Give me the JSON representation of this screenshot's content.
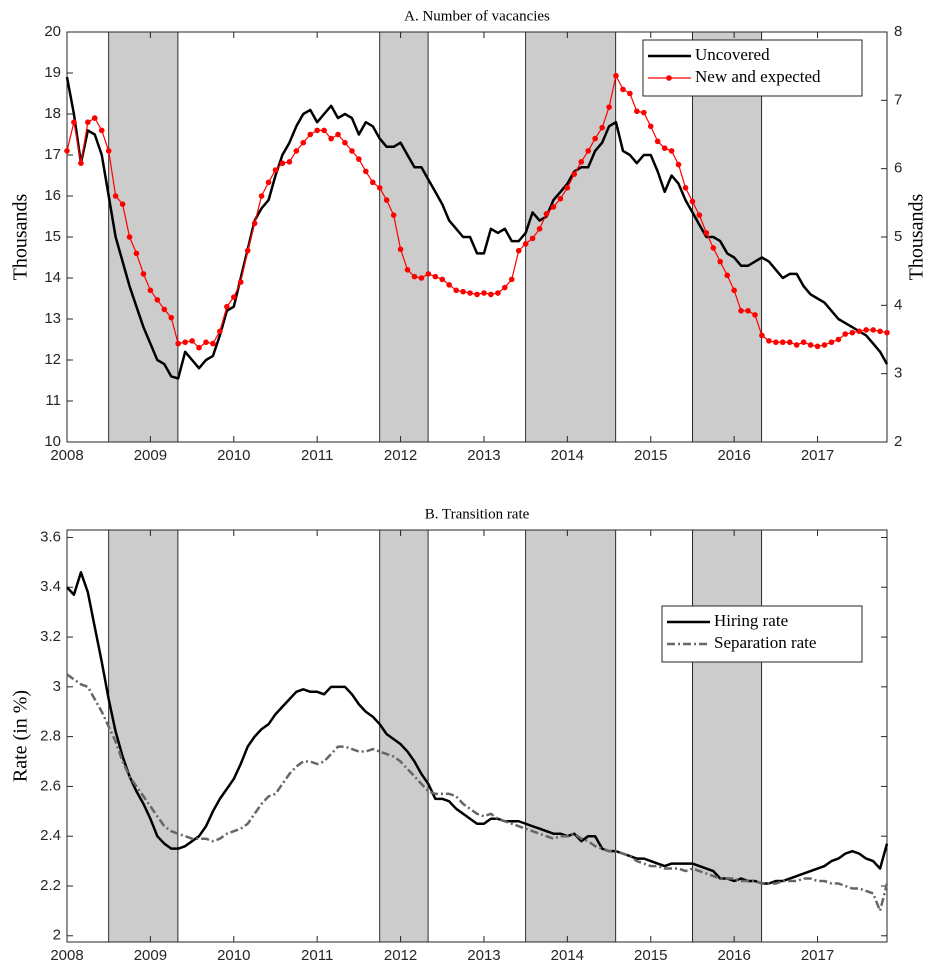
{
  "chart_data": [
    {
      "type": "line",
      "title": "A. Number of vacancies",
      "ylabel": "Thousands",
      "y2label": "Thousands",
      "x": [
        2008,
        2008.083,
        2008.167,
        2008.25,
        2008.333,
        2008.417,
        2008.5,
        2008.583,
        2008.667,
        2008.75,
        2008.833,
        2008.917,
        2009,
        2009.083,
        2009.167,
        2009.25,
        2009.333,
        2009.417,
        2009.5,
        2009.583,
        2009.667,
        2009.75,
        2009.833,
        2009.917,
        2010,
        2010.083,
        2010.167,
        2010.25,
        2010.333,
        2010.417,
        2010.5,
        2010.583,
        2010.667,
        2010.75,
        2010.833,
        2010.917,
        2011,
        2011.083,
        2011.167,
        2011.25,
        2011.333,
        2011.417,
        2011.5,
        2011.583,
        2011.667,
        2011.75,
        2011.833,
        2011.917,
        2012,
        2012.083,
        2012.167,
        2012.25,
        2012.333,
        2012.417,
        2012.5,
        2012.583,
        2012.667,
        2012.75,
        2012.833,
        2012.917,
        2013,
        2013.083,
        2013.167,
        2013.25,
        2013.333,
        2013.417,
        2013.5,
        2013.583,
        2013.667,
        2013.75,
        2013.833,
        2013.917,
        2014,
        2014.083,
        2014.167,
        2014.25,
        2014.333,
        2014.417,
        2014.5,
        2014.583,
        2014.667,
        2014.75,
        2014.833,
        2014.917,
        2015,
        2015.083,
        2015.167,
        2015.25,
        2015.333,
        2015.417,
        2015.5,
        2015.583,
        2015.667,
        2015.75,
        2015.833,
        2015.917,
        2016,
        2016.083,
        2016.167,
        2016.25,
        2016.333,
        2016.417,
        2016.5,
        2016.583,
        2016.667,
        2016.75,
        2016.833,
        2016.917,
        2017,
        2017.083,
        2017.167,
        2017.25,
        2017.333,
        2017.417,
        2017.5,
        2017.583,
        2017.667,
        2017.75,
        2017.833
      ],
      "xlim": [
        2008,
        2017.833
      ],
      "xticks": [
        2008,
        2009,
        2010,
        2011,
        2012,
        2013,
        2014,
        2015,
        2016,
        2017
      ],
      "ylim": [
        10,
        20
      ],
      "yticks": [
        10,
        11,
        12,
        13,
        14,
        15,
        16,
        17,
        18,
        19,
        20
      ],
      "y2lim": [
        2,
        8
      ],
      "y2ticks": [
        2,
        3,
        4,
        5,
        6,
        7,
        8
      ],
      "shaded": [
        [
          2008.5,
          2009.33
        ],
        [
          2011.75,
          2012.33
        ],
        [
          2013.5,
          2014.58
        ],
        [
          2015.5,
          2016.33
        ]
      ],
      "legend": "upper right",
      "series": [
        {
          "name": "Uncovered",
          "color": "#000000",
          "values": [
            18.9,
            18.0,
            16.8,
            17.6,
            17.5,
            17.0,
            16.0,
            15.0,
            14.4,
            13.8,
            13.3,
            12.8,
            12.4,
            12.0,
            11.9,
            11.6,
            11.55,
            12.2,
            12.0,
            11.8,
            12.0,
            12.1,
            12.6,
            13.2,
            13.3,
            14.0,
            14.7,
            15.4,
            15.7,
            15.9,
            16.5,
            17.0,
            17.3,
            17.7,
            18.0,
            18.1,
            17.8,
            18.0,
            18.2,
            17.9,
            18.0,
            17.9,
            17.5,
            17.8,
            17.7,
            17.4,
            17.2,
            17.2,
            17.3,
            17.0,
            16.7,
            16.7,
            16.4,
            16.1,
            15.8,
            15.4,
            15.2,
            15.0,
            15.0,
            14.6,
            14.6,
            15.2,
            15.1,
            15.2,
            14.9,
            14.9,
            15.1,
            15.6,
            15.4,
            15.5,
            15.9,
            16.1,
            16.3,
            16.6,
            16.7,
            16.7,
            17.1,
            17.3,
            17.7,
            17.8,
            17.1,
            17.0,
            16.8,
            17.0,
            17.0,
            16.6,
            16.1,
            16.5,
            16.3,
            15.9,
            15.6,
            15.3,
            15.0,
            15.0,
            14.9,
            14.6,
            14.5,
            14.3,
            14.3,
            14.4,
            14.5,
            14.4,
            14.2,
            14.0,
            14.1,
            14.1,
            13.8,
            13.6,
            13.5,
            13.4,
            13.2,
            13.0,
            12.9,
            12.8,
            12.7,
            12.6,
            12.4,
            12.2,
            11.9
          ]
        },
        {
          "name": "New and expected",
          "color": "#ff0000",
          "axis": "y2",
          "marker": "o",
          "values": [
            6.26,
            6.68,
            6.08,
            6.68,
            6.74,
            6.56,
            6.26,
            5.6,
            5.48,
            5.0,
            4.76,
            4.46,
            4.22,
            4.08,
            3.94,
            3.82,
            3.44,
            3.46,
            3.48,
            3.38,
            3.46,
            3.44,
            3.62,
            3.98,
            4.12,
            4.34,
            4.8,
            5.2,
            5.6,
            5.8,
            5.98,
            6.08,
            6.1,
            6.26,
            6.38,
            6.5,
            6.56,
            6.56,
            6.44,
            6.5,
            6.38,
            6.26,
            6.14,
            5.96,
            5.8,
            5.72,
            5.54,
            5.32,
            4.82,
            4.52,
            4.42,
            4.4,
            4.46,
            4.42,
            4.38,
            4.3,
            4.22,
            4.2,
            4.18,
            4.16,
            4.18,
            4.16,
            4.18,
            4.26,
            4.38,
            4.8,
            4.9,
            4.98,
            5.12,
            5.34,
            5.44,
            5.56,
            5.72,
            5.92,
            6.1,
            6.26,
            6.44,
            6.6,
            6.9,
            7.36,
            7.16,
            7.1,
            6.84,
            6.82,
            6.62,
            6.4,
            6.3,
            6.26,
            6.06,
            5.72,
            5.52,
            5.32,
            5.06,
            4.84,
            4.64,
            4.44,
            4.22,
            3.92,
            3.92,
            3.86,
            3.56,
            3.48,
            3.46,
            3.46,
            3.46,
            3.42,
            3.46,
            3.42,
            3.4,
            3.42,
            3.46,
            3.5,
            3.58,
            3.6,
            3.62,
            3.64,
            3.64,
            3.62,
            3.6
          ]
        }
      ]
    },
    {
      "type": "line",
      "title": "B. Transition rate",
      "ylabel": "Rate (in %)",
      "x": [
        2008,
        2008.083,
        2008.167,
        2008.25,
        2008.333,
        2008.417,
        2008.5,
        2008.583,
        2008.667,
        2008.75,
        2008.833,
        2008.917,
        2009,
        2009.083,
        2009.167,
        2009.25,
        2009.333,
        2009.417,
        2009.5,
        2009.583,
        2009.667,
        2009.75,
        2009.833,
        2009.917,
        2010,
        2010.083,
        2010.167,
        2010.25,
        2010.333,
        2010.417,
        2010.5,
        2010.583,
        2010.667,
        2010.75,
        2010.833,
        2010.917,
        2011,
        2011.083,
        2011.167,
        2011.25,
        2011.333,
        2011.417,
        2011.5,
        2011.583,
        2011.667,
        2011.75,
        2011.833,
        2011.917,
        2012,
        2012.083,
        2012.167,
        2012.25,
        2012.333,
        2012.417,
        2012.5,
        2012.583,
        2012.667,
        2012.75,
        2012.833,
        2012.917,
        2013,
        2013.083,
        2013.167,
        2013.25,
        2013.333,
        2013.417,
        2013.5,
        2013.583,
        2013.667,
        2013.75,
        2013.833,
        2013.917,
        2014,
        2014.083,
        2014.167,
        2014.25,
        2014.333,
        2014.417,
        2014.5,
        2014.583,
        2014.667,
        2014.75,
        2014.833,
        2014.917,
        2015,
        2015.083,
        2015.167,
        2015.25,
        2015.333,
        2015.417,
        2015.5,
        2015.583,
        2015.667,
        2015.75,
        2015.833,
        2015.917,
        2016,
        2016.083,
        2016.167,
        2016.25,
        2016.333,
        2016.417,
        2016.5,
        2016.583,
        2016.667,
        2016.75,
        2016.833,
        2016.917,
        2017,
        2017.083,
        2017.167,
        2017.25,
        2017.333,
        2017.417,
        2017.5,
        2017.583,
        2017.667,
        2017.75,
        2017.833
      ],
      "xlim": [
        2008,
        2017.833
      ],
      "xticks": [
        2008,
        2009,
        2010,
        2011,
        2012,
        2013,
        2014,
        2015,
        2016,
        2017
      ],
      "ylim": [
        1.975,
        3.63
      ],
      "yticks": [
        2,
        2.2,
        2.4,
        2.6,
        2.8,
        3,
        3.2,
        3.4,
        3.6
      ],
      "shaded": [
        [
          2008.5,
          2009.33
        ],
        [
          2011.75,
          2012.33
        ],
        [
          2013.5,
          2014.58
        ],
        [
          2015.5,
          2016.33
        ]
      ],
      "legend": "right",
      "series": [
        {
          "name": "Hiring rate",
          "color": "#000000",
          "values": [
            3.4,
            3.37,
            3.46,
            3.38,
            3.24,
            3.1,
            2.95,
            2.82,
            2.72,
            2.64,
            2.58,
            2.53,
            2.47,
            2.4,
            2.37,
            2.35,
            2.35,
            2.36,
            2.38,
            2.4,
            2.44,
            2.5,
            2.55,
            2.59,
            2.63,
            2.69,
            2.76,
            2.8,
            2.83,
            2.85,
            2.89,
            2.92,
            2.95,
            2.98,
            2.99,
            2.98,
            2.98,
            2.97,
            3.0,
            3.0,
            3.0,
            2.97,
            2.93,
            2.9,
            2.88,
            2.85,
            2.81,
            2.79,
            2.77,
            2.74,
            2.7,
            2.65,
            2.61,
            2.55,
            2.55,
            2.54,
            2.51,
            2.49,
            2.47,
            2.45,
            2.45,
            2.47,
            2.47,
            2.46,
            2.46,
            2.46,
            2.45,
            2.44,
            2.43,
            2.42,
            2.41,
            2.41,
            2.4,
            2.41,
            2.38,
            2.4,
            2.4,
            2.35,
            2.34,
            2.34,
            2.33,
            2.32,
            2.31,
            2.31,
            2.3,
            2.29,
            2.28,
            2.29,
            2.29,
            2.29,
            2.29,
            2.28,
            2.27,
            2.26,
            2.23,
            2.23,
            2.22,
            2.23,
            2.22,
            2.22,
            2.21,
            2.21,
            2.22,
            2.22,
            2.23,
            2.24,
            2.25,
            2.26,
            2.27,
            2.28,
            2.3,
            2.31,
            2.33,
            2.34,
            2.33,
            2.31,
            2.3,
            2.27,
            2.37
          ]
        },
        {
          "name": "Separation rate",
          "color": "#666666",
          "dash": "dashdot",
          "values": [
            3.05,
            3.03,
            3.01,
            3.0,
            2.95,
            2.9,
            2.84,
            2.78,
            2.7,
            2.64,
            2.6,
            2.56,
            2.52,
            2.48,
            2.44,
            2.42,
            2.41,
            2.4,
            2.39,
            2.39,
            2.39,
            2.38,
            2.39,
            2.41,
            2.42,
            2.43,
            2.45,
            2.49,
            2.53,
            2.56,
            2.57,
            2.61,
            2.65,
            2.68,
            2.7,
            2.7,
            2.69,
            2.7,
            2.73,
            2.76,
            2.76,
            2.75,
            2.74,
            2.74,
            2.75,
            2.74,
            2.73,
            2.72,
            2.7,
            2.67,
            2.64,
            2.61,
            2.58,
            2.57,
            2.57,
            2.57,
            2.56,
            2.53,
            2.51,
            2.49,
            2.48,
            2.49,
            2.47,
            2.46,
            2.45,
            2.44,
            2.43,
            2.42,
            2.41,
            2.4,
            2.39,
            2.4,
            2.4,
            2.41,
            2.39,
            2.38,
            2.36,
            2.35,
            2.34,
            2.34,
            2.33,
            2.32,
            2.3,
            2.29,
            2.28,
            2.28,
            2.27,
            2.27,
            2.27,
            2.26,
            2.27,
            2.26,
            2.25,
            2.24,
            2.23,
            2.23,
            2.23,
            2.22,
            2.22,
            2.22,
            2.21,
            2.21,
            2.21,
            2.22,
            2.22,
            2.22,
            2.23,
            2.23,
            2.22,
            2.22,
            2.21,
            2.21,
            2.2,
            2.19,
            2.19,
            2.18,
            2.17,
            2.1,
            2.21
          ]
        }
      ]
    }
  ]
}
